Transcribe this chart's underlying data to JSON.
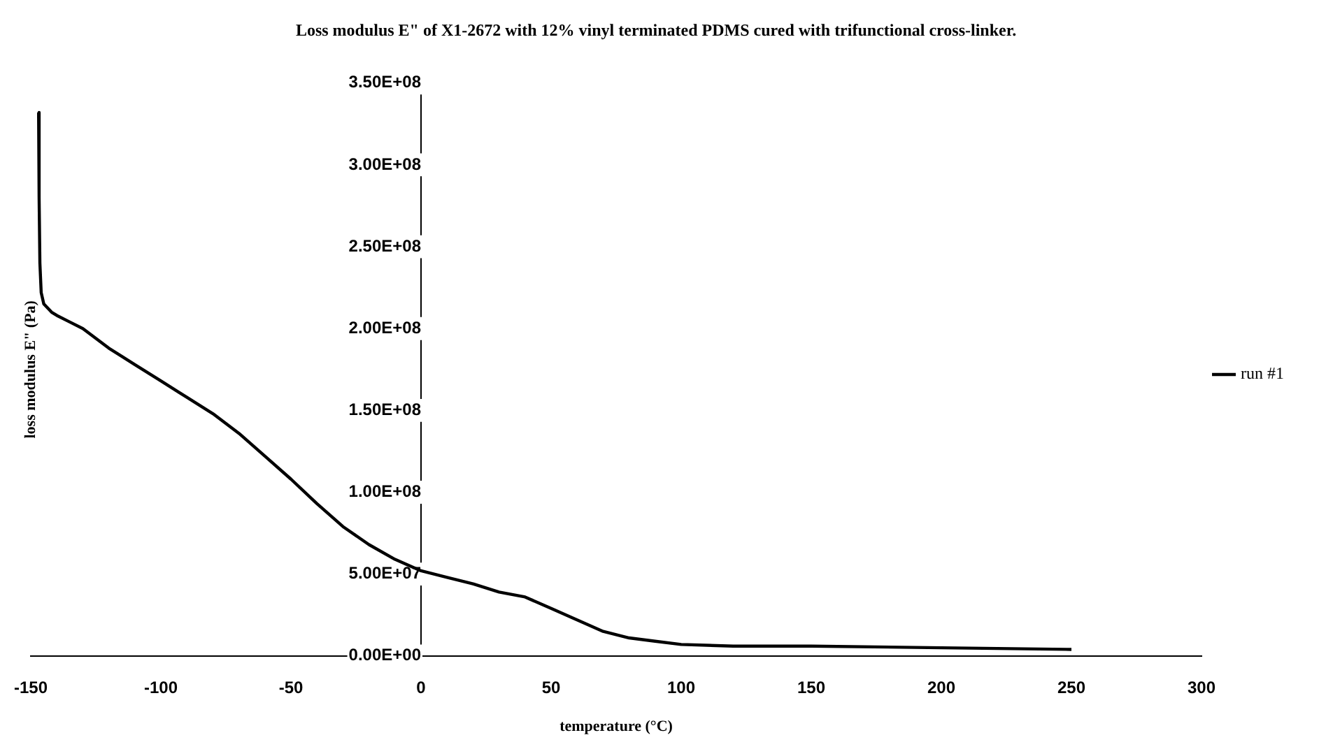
{
  "chart_data": {
    "type": "line",
    "title": "Loss modulus E\" of X1-2672 with 12% vinyl terminated PDMS cured with trifunctional cross-linker.",
    "xlabel": "temperature (°C)",
    "ylabel": "loss modulus E\" (Pa)",
    "x": [
      -147,
      -146.8,
      -146.5,
      -146,
      -145,
      -142,
      -140,
      -135,
      -130,
      -120,
      -110,
      -100,
      -90,
      -80,
      -70,
      -60,
      -50,
      -40,
      -30,
      -20,
      -10,
      0,
      10,
      20,
      30,
      40,
      50,
      60,
      70,
      80,
      90,
      100,
      120,
      150,
      200,
      250
    ],
    "series": [
      {
        "name": "run #1",
        "color": "#000000",
        "values": [
          332000000,
          280000000,
          240000000,
          222000000,
          215000000,
          210000000,
          208000000,
          204000000,
          200000000,
          188000000,
          178000000,
          168000000,
          158000000,
          148000000,
          136000000,
          122000000,
          108000000,
          93000000,
          79000000,
          68000000,
          59000000,
          52000000,
          48000000,
          44000000,
          39000000,
          36000000,
          29000000,
          22000000,
          15000000,
          11000000,
          9000000,
          7000000,
          6000000,
          6000000,
          5000000,
          4000000
        ]
      }
    ],
    "xlim": [
      -150,
      300
    ],
    "xticks": [
      -150,
      -100,
      -50,
      0,
      50,
      100,
      150,
      200,
      250,
      300
    ],
    "ylim": [
      0,
      350000000
    ],
    "yticks": [
      {
        "value": 0,
        "label": "0.00E+00"
      },
      {
        "value": 50000000,
        "label": "5.00E+07"
      },
      {
        "value": 100000000,
        "label": "1.00E+08"
      },
      {
        "value": 150000000,
        "label": "1.50E+08"
      },
      {
        "value": 200000000,
        "label": "2.00E+08"
      },
      {
        "value": 250000000,
        "label": "2.50E+08"
      },
      {
        "value": 300000000,
        "label": "3.00E+08"
      },
      {
        "value": 350000000,
        "label": "3.50E+08"
      }
    ],
    "grid": false,
    "legend": "right",
    "marker": "none",
    "line_style": "solid"
  }
}
